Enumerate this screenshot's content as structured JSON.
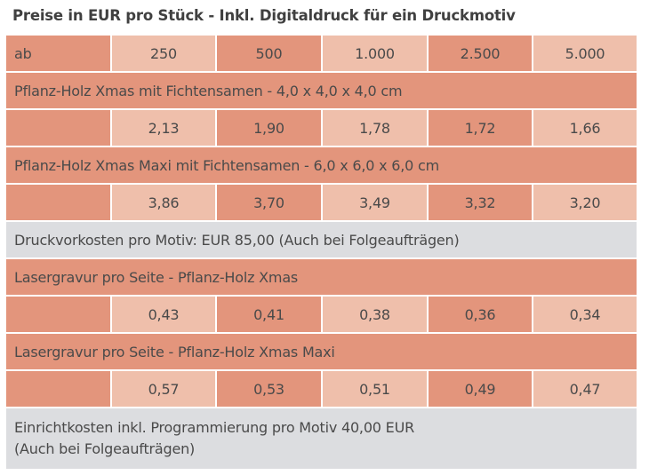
{
  "title": "Preise in EUR pro Stück - Inkl. Digitaldruck für ein Druckmotiv",
  "header": {
    "label": "ab",
    "quantities": [
      "250",
      "500",
      "1.000",
      "2.500",
      "5.000"
    ]
  },
  "products": [
    {
      "name": "Pflanz-Holz Xmas mit Fichtensamen - 4,0 x 4,0 x 4,0 cm",
      "prices": [
        "2,13",
        "1,90",
        "1,78",
        "1,72",
        "1,66"
      ]
    },
    {
      "name": "Pflanz-Holz Xmas Maxi mit Fichtensamen - 6,0 x 6,0 x 6,0 cm",
      "prices": [
        "3,86",
        "3,70",
        "3,49",
        "3,32",
        "3,20"
      ]
    }
  ],
  "note1": "Druckvorkosten pro Motiv: EUR 85,00 (Auch bei Folgeaufträgen)",
  "engraving": [
    {
      "name": "Lasergravur pro Seite - Pflanz-Holz Xmas",
      "prices": [
        "0,43",
        "0,41",
        "0,38",
        "0,36",
        "0,34"
      ]
    },
    {
      "name": "Lasergravur pro Seite - Pflanz-Holz Xmas Maxi",
      "prices": [
        "0,57",
        "0,53",
        "0,51",
        "0,49",
        "0,47"
      ]
    }
  ],
  "note2": {
    "line1": "Einrichtkosten inkl. Programmierung pro Motiv 40,00 EUR",
    "line2": "(Auch bei Folgeaufträgen)"
  }
}
